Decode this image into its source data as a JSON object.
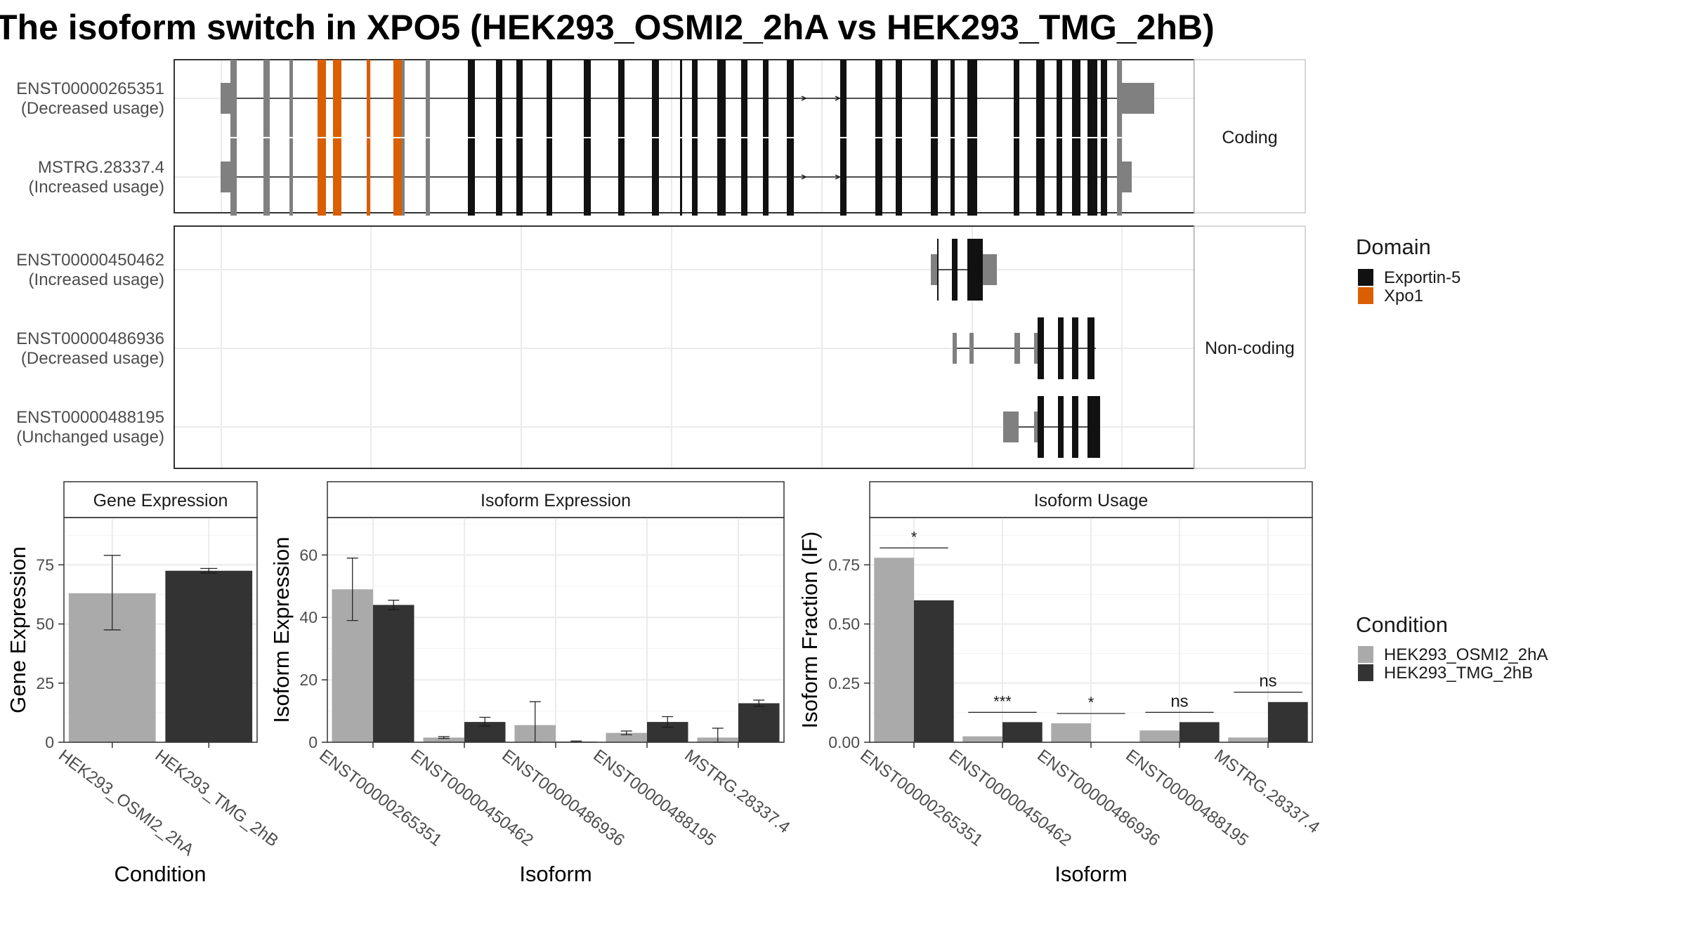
{
  "title": "The isoform switch in XPO5 (HEK293_OSMI2_2hA vs HEK293_TMG_2hB)",
  "colors": {
    "exportin5": "#111111",
    "xpo1": "#d95f02",
    "utr_exon": "#808080",
    "cond1": "#aaaaaa",
    "cond2": "#333333",
    "grid": "#ebebeb",
    "strip_bg": "#ffffff",
    "panel_border": "#333333"
  },
  "structure": {
    "groups": [
      {
        "label": "Coding",
        "tracks": [
          {
            "name": "ENST00000265351",
            "usage": "(Decreased usage)"
          },
          {
            "name": "MSTRG.28337.4",
            "usage": "(Increased usage)"
          }
        ]
      },
      {
        "label": "Non-coding",
        "tracks": [
          {
            "name": "ENST00000450462",
            "usage": "(Increased usage)"
          },
          {
            "name": "ENST00000486936",
            "usage": "(Decreased usage)"
          },
          {
            "name": "ENST00000488195",
            "usage": "(Unchanged usage)"
          }
        ]
      }
    ],
    "legend": {
      "title": "Domain",
      "items": [
        {
          "label": "Exportin-5",
          "color_key": "exportin5"
        },
        {
          "label": "Xpo1",
          "color_key": "xpo1"
        }
      ]
    }
  },
  "condition_legend": {
    "title": "Condition",
    "items": [
      {
        "label": "HEK293_OSMI2_2hA",
        "color_key": "cond1"
      },
      {
        "label": "HEK293_TMG_2hB",
        "color_key": "cond2"
      }
    ]
  },
  "chart_data": [
    {
      "type": "bar",
      "title": "Gene Expression",
      "xlabel": "Condition",
      "ylabel": "Gene Expression",
      "categories": [
        "HEK293_OSMI2_2hA",
        "HEK293_TMG_2hB"
      ],
      "values": [
        63,
        72.5
      ],
      "error_low": [
        47.5,
        71.5
      ],
      "error_high": [
        79,
        73.5
      ],
      "ylim": [
        0,
        95
      ],
      "yticks": [
        0,
        25,
        50,
        75
      ],
      "grid": true
    },
    {
      "type": "bar",
      "title": "Isoform Expression",
      "xlabel": "Isoform",
      "ylabel": "Isoform Expression",
      "categories": [
        "ENST00000265351",
        "ENST00000450462",
        "ENST00000486936",
        "ENST00000488195",
        "MSTRG.28337.4"
      ],
      "series": [
        {
          "name": "HEK293_OSMI2_2hA",
          "values": [
            49,
            1.5,
            5.5,
            3,
            1.5
          ],
          "error_low": [
            39,
            1.2,
            0,
            2.4,
            0
          ],
          "error_high": [
            59,
            1.8,
            13,
            3.6,
            4.5
          ]
        },
        {
          "name": "HEK293_TMG_2hB",
          "values": [
            44,
            6.5,
            0.2,
            6.5,
            12.5
          ],
          "error_low": [
            42.5,
            5.2,
            0,
            4.8,
            11.5
          ],
          "error_high": [
            45.5,
            8,
            0.4,
            8.2,
            13.5
          ]
        }
      ],
      "ylim": [
        0,
        72
      ],
      "yticks": [
        0,
        20,
        40,
        60
      ],
      "grid": true
    },
    {
      "type": "bar",
      "title": "Isoform Usage",
      "xlabel": "Isoform",
      "ylabel": "Isoform Fraction (IF)",
      "categories": [
        "ENST00000265351",
        "ENST00000450462",
        "ENST00000486936",
        "ENST00000488195",
        "MSTRG.28337.4"
      ],
      "series": [
        {
          "name": "HEK293_OSMI2_2hA",
          "values": [
            0.78,
            0.025,
            0.08,
            0.05,
            0.02
          ]
        },
        {
          "name": "HEK293_TMG_2hB",
          "values": [
            0.6,
            0.085,
            0.0,
            0.085,
            0.17
          ]
        }
      ],
      "significance": [
        "*",
        "***",
        "*",
        "ns",
        "ns"
      ],
      "ylim": [
        0,
        0.95
      ],
      "yticks": [
        0,
        0.25,
        0.5,
        0.75
      ],
      "ytick_labels": [
        "0.00",
        "0.25",
        "0.50",
        "0.75"
      ],
      "grid": true
    }
  ]
}
